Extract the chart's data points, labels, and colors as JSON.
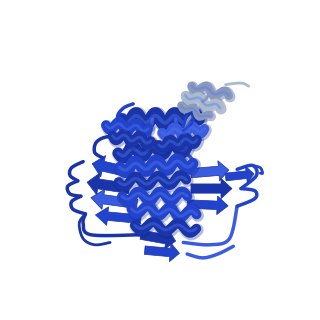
{
  "background_color": "#ffffff",
  "figsize": [
    3.2,
    3.2
  ],
  "dpi": 100,
  "main_blue": "#2244cc",
  "mid_blue": "#3a5ce0",
  "light_blue": "#5577ee",
  "dark_blue": "#1a35aa",
  "deep_blue": "#0d2288",
  "grey1": "#8899bb",
  "grey2": "#aabbcc",
  "grey3": "#99aabb",
  "helix_lw": 6,
  "sheet_lw": 3,
  "loop_lw": 2
}
